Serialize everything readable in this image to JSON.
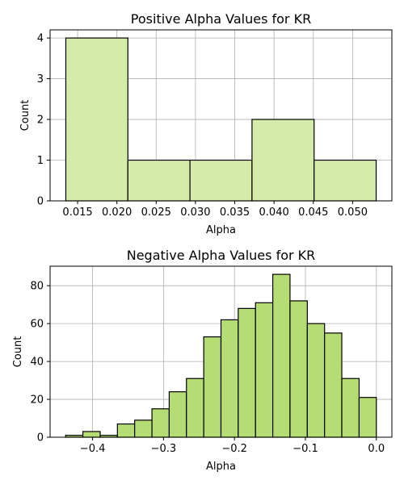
{
  "chart_data": [
    {
      "type": "bar",
      "subtype": "histogram",
      "title": "Positive Alpha Values for KR",
      "xlabel": "Alpha",
      "ylabel": "Count",
      "bin_edges": [
        0.0135,
        0.0214,
        0.0293,
        0.0372,
        0.0451,
        0.053
      ],
      "values": [
        4,
        1,
        1,
        2,
        1
      ],
      "xlim": [
        0.0115,
        0.055
      ],
      "ylim": [
        0,
        4.2
      ],
      "xticks": [
        0.015,
        0.02,
        0.025,
        0.03,
        0.035,
        0.04,
        0.045,
        0.05
      ],
      "xtick_labels": [
        "0.015",
        "0.020",
        "0.025",
        "0.030",
        "0.035",
        "0.040",
        "0.045",
        "0.050"
      ],
      "yticks": [
        0,
        1,
        2,
        3,
        4
      ],
      "ytick_labels": [
        "0",
        "1",
        "2",
        "3",
        "4"
      ],
      "bar_color": "#d4ebaa",
      "edge_color": "#000000",
      "grid": true,
      "grid_color": "#b0b0b0"
    },
    {
      "type": "bar",
      "subtype": "histogram",
      "title": "Negative Alpha Values for KR",
      "xlabel": "Alpha",
      "ylabel": "Count",
      "bin_edges": [
        -0.438,
        -0.4137,
        -0.3893,
        -0.365,
        -0.3407,
        -0.3163,
        -0.292,
        -0.2677,
        -0.2433,
        -0.219,
        -0.1947,
        -0.1703,
        -0.146,
        -0.1217,
        -0.0973,
        -0.073,
        -0.0487,
        -0.0243,
        0.0
      ],
      "values": [
        1,
        3,
        1,
        7,
        9,
        15,
        24,
        31,
        53,
        62,
        68,
        71,
        86,
        72,
        60,
        55,
        31,
        21
      ],
      "xlim": [
        -0.4599,
        0.0219
      ],
      "ylim": [
        0,
        90.3
      ],
      "xticks": [
        -0.4,
        -0.3,
        -0.2,
        -0.1,
        0.0
      ],
      "xtick_labels": [
        "−0.4",
        "−0.3",
        "−0.2",
        "−0.1",
        "0.0"
      ],
      "yticks": [
        0,
        20,
        40,
        60,
        80
      ],
      "ytick_labels": [
        "0",
        "20",
        "40",
        "60",
        "80"
      ],
      "bar_color": "#b5dd73",
      "edge_color": "#000000",
      "grid": true,
      "grid_color": "#b0b0b0"
    }
  ]
}
